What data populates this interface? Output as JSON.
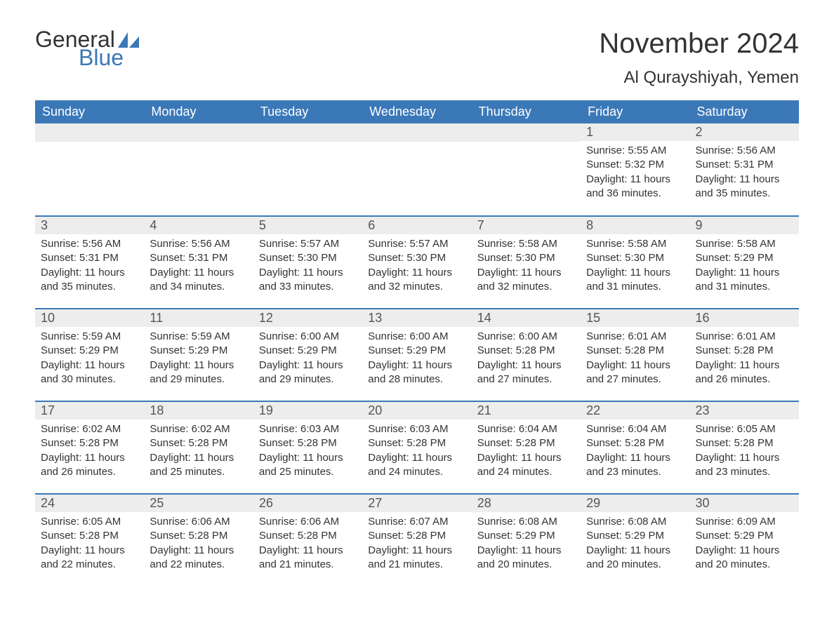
{
  "logo": {
    "text1": "General",
    "text2": "Blue",
    "text1_color": "#333333",
    "text2_color": "#3b78b8"
  },
  "title": "November 2024",
  "location": "Al Qurayshiyah, Yemen",
  "colors": {
    "header_bg": "#3b78b8",
    "header_text": "#ffffff",
    "daynum_bg": "#ededed",
    "daynum_text": "#555555",
    "body_text": "#333333",
    "row_divider": "#3b78b8",
    "page_bg": "#ffffff"
  },
  "typography": {
    "title_size": 40,
    "location_size": 24,
    "header_size": 18,
    "daynum_size": 18,
    "body_size": 15
  },
  "layout": {
    "columns": 7,
    "rows": 5,
    "first_day_column_index": 5
  },
  "weekdays": [
    "Sunday",
    "Monday",
    "Tuesday",
    "Wednesday",
    "Thursday",
    "Friday",
    "Saturday"
  ],
  "labels": {
    "sunrise": "Sunrise:",
    "sunset": "Sunset:",
    "daylight": "Daylight:"
  },
  "days": [
    {
      "n": 1,
      "sunrise": "5:55 AM",
      "sunset": "5:32 PM",
      "daylight": "11 hours and 36 minutes."
    },
    {
      "n": 2,
      "sunrise": "5:56 AM",
      "sunset": "5:31 PM",
      "daylight": "11 hours and 35 minutes."
    },
    {
      "n": 3,
      "sunrise": "5:56 AM",
      "sunset": "5:31 PM",
      "daylight": "11 hours and 35 minutes."
    },
    {
      "n": 4,
      "sunrise": "5:56 AM",
      "sunset": "5:31 PM",
      "daylight": "11 hours and 34 minutes."
    },
    {
      "n": 5,
      "sunrise": "5:57 AM",
      "sunset": "5:30 PM",
      "daylight": "11 hours and 33 minutes."
    },
    {
      "n": 6,
      "sunrise": "5:57 AM",
      "sunset": "5:30 PM",
      "daylight": "11 hours and 32 minutes."
    },
    {
      "n": 7,
      "sunrise": "5:58 AM",
      "sunset": "5:30 PM",
      "daylight": "11 hours and 32 minutes."
    },
    {
      "n": 8,
      "sunrise": "5:58 AM",
      "sunset": "5:30 PM",
      "daylight": "11 hours and 31 minutes."
    },
    {
      "n": 9,
      "sunrise": "5:58 AM",
      "sunset": "5:29 PM",
      "daylight": "11 hours and 31 minutes."
    },
    {
      "n": 10,
      "sunrise": "5:59 AM",
      "sunset": "5:29 PM",
      "daylight": "11 hours and 30 minutes."
    },
    {
      "n": 11,
      "sunrise": "5:59 AM",
      "sunset": "5:29 PM",
      "daylight": "11 hours and 29 minutes."
    },
    {
      "n": 12,
      "sunrise": "6:00 AM",
      "sunset": "5:29 PM",
      "daylight": "11 hours and 29 minutes."
    },
    {
      "n": 13,
      "sunrise": "6:00 AM",
      "sunset": "5:29 PM",
      "daylight": "11 hours and 28 minutes."
    },
    {
      "n": 14,
      "sunrise": "6:00 AM",
      "sunset": "5:28 PM",
      "daylight": "11 hours and 27 minutes."
    },
    {
      "n": 15,
      "sunrise": "6:01 AM",
      "sunset": "5:28 PM",
      "daylight": "11 hours and 27 minutes."
    },
    {
      "n": 16,
      "sunrise": "6:01 AM",
      "sunset": "5:28 PM",
      "daylight": "11 hours and 26 minutes."
    },
    {
      "n": 17,
      "sunrise": "6:02 AM",
      "sunset": "5:28 PM",
      "daylight": "11 hours and 26 minutes."
    },
    {
      "n": 18,
      "sunrise": "6:02 AM",
      "sunset": "5:28 PM",
      "daylight": "11 hours and 25 minutes."
    },
    {
      "n": 19,
      "sunrise": "6:03 AM",
      "sunset": "5:28 PM",
      "daylight": "11 hours and 25 minutes."
    },
    {
      "n": 20,
      "sunrise": "6:03 AM",
      "sunset": "5:28 PM",
      "daylight": "11 hours and 24 minutes."
    },
    {
      "n": 21,
      "sunrise": "6:04 AM",
      "sunset": "5:28 PM",
      "daylight": "11 hours and 24 minutes."
    },
    {
      "n": 22,
      "sunrise": "6:04 AM",
      "sunset": "5:28 PM",
      "daylight": "11 hours and 23 minutes."
    },
    {
      "n": 23,
      "sunrise": "6:05 AM",
      "sunset": "5:28 PM",
      "daylight": "11 hours and 23 minutes."
    },
    {
      "n": 24,
      "sunrise": "6:05 AM",
      "sunset": "5:28 PM",
      "daylight": "11 hours and 22 minutes."
    },
    {
      "n": 25,
      "sunrise": "6:06 AM",
      "sunset": "5:28 PM",
      "daylight": "11 hours and 22 minutes."
    },
    {
      "n": 26,
      "sunrise": "6:06 AM",
      "sunset": "5:28 PM",
      "daylight": "11 hours and 21 minutes."
    },
    {
      "n": 27,
      "sunrise": "6:07 AM",
      "sunset": "5:28 PM",
      "daylight": "11 hours and 21 minutes."
    },
    {
      "n": 28,
      "sunrise": "6:08 AM",
      "sunset": "5:29 PM",
      "daylight": "11 hours and 20 minutes."
    },
    {
      "n": 29,
      "sunrise": "6:08 AM",
      "sunset": "5:29 PM",
      "daylight": "11 hours and 20 minutes."
    },
    {
      "n": 30,
      "sunrise": "6:09 AM",
      "sunset": "5:29 PM",
      "daylight": "11 hours and 20 minutes."
    }
  ]
}
